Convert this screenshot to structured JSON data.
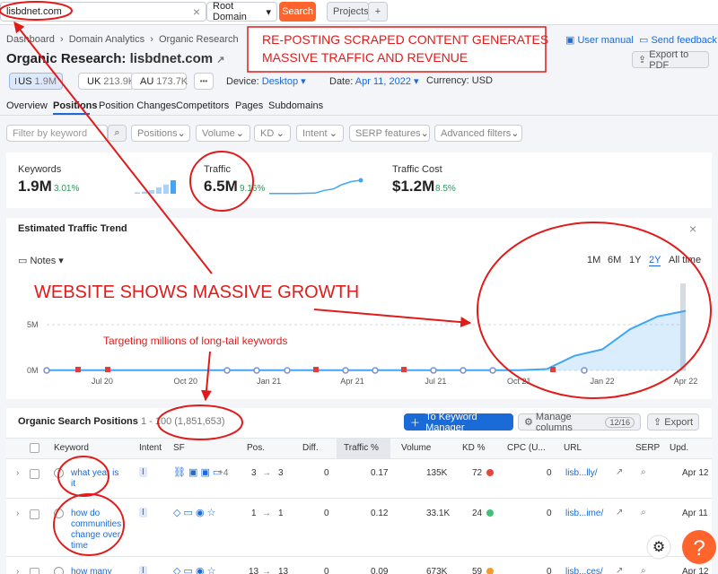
{
  "topbar": {
    "domain": "lisbdnet.com",
    "clear": "×",
    "scope": "Root Domain",
    "search": "Search",
    "projects": "Projects",
    "add": "+"
  },
  "breadcrumb": [
    "Dashboard",
    "Domain Analytics",
    "Organic Research"
  ],
  "header": {
    "title": "Organic Research:",
    "domain": "lisbdnet.com",
    "user_manual": "User manual",
    "send_feedback": "Send feedback",
    "export_pdf": "Export to PDF"
  },
  "annotations": {
    "box": [
      "RE-POSTING SCRAPED CONTENT GENERATES",
      "MASSIVE TRAFFIC AND REVENUE"
    ],
    "growth": "WEBSITE SHOWS MASSIVE GROWTH",
    "longtail": "Targeting millions of long-tail keywords"
  },
  "databases": [
    {
      "code": "US",
      "count": "1.9M"
    },
    {
      "code": "UK",
      "count": "213.9K"
    },
    {
      "code": "AU",
      "count": "173.7K"
    }
  ],
  "more": "•••",
  "settings": {
    "device_label": "Device:",
    "device": "Desktop",
    "date_label": "Date:",
    "date": "Apr 11, 2022",
    "currency_label": "Currency:",
    "currency": "USD"
  },
  "tabs": [
    "Overview",
    "Positions",
    "Position Changes",
    "Competitors",
    "Pages",
    "Subdomains"
  ],
  "active_tab": 1,
  "filters": {
    "keyword_placeholder": "Filter by keyword",
    "dropdowns": [
      "Positions",
      "Volume",
      "KD",
      "Intent",
      "SERP features",
      "Advanced filters"
    ]
  },
  "metrics": [
    {
      "label": "Keywords",
      "value": "1.9M",
      "change": "3.01%",
      "spark": [
        0.2,
        0.3,
        0.5,
        0.9,
        1.3,
        1.9
      ]
    },
    {
      "label": "Traffic",
      "value": "6.5M",
      "change": "9.16%",
      "spark": [
        0.1,
        0.1,
        0.1,
        0.1,
        0.2,
        0.3,
        1.6,
        2.3,
        4.5,
        5.9,
        6.5
      ]
    },
    {
      "label": "Traffic Cost",
      "value": "$1.2M",
      "change": "8.5%"
    }
  ],
  "trend": {
    "title": "Estimated Traffic Trend",
    "close": "×",
    "notes": "Notes",
    "ranges": [
      "1M",
      "6M",
      "1Y",
      "2Y",
      "All time"
    ],
    "active_range": 3,
    "categories": [
      null,
      null,
      "Jul 20",
      null,
      null,
      "Oct 20",
      null,
      null,
      "Jan 21",
      null,
      null,
      "Apr 21",
      null,
      null,
      "Jul 21",
      null,
      null,
      "Oct 21",
      null,
      null,
      "Jan 22",
      null,
      null,
      "Apr 22"
    ],
    "values": [
      20000,
      20000,
      20000,
      20000,
      20000,
      20000,
      20000,
      20000,
      20000,
      20000,
      20000,
      20000,
      20000,
      20000,
      20000,
      20000,
      20000,
      30000,
      150000,
      1600000,
      2300000,
      4500000,
      5900000,
      6500000
    ],
    "ylim": [
      0,
      9500000
    ],
    "yticks": [
      {
        "value": 0,
        "label": "0M"
      },
      {
        "value": 5000000,
        "label": "5M"
      }
    ],
    "color": "#42a5f5",
    "grid": true
  },
  "positions": {
    "title": "Organic Search Positions",
    "range": "1 - 100",
    "total": "(1,851,653)",
    "keyword_manager": "To Keyword Manager",
    "manage_columns": "Manage columns",
    "columns_count": "12/16",
    "export": "Export",
    "columns": [
      "Keyword",
      "Intent",
      "SF",
      "Pos.",
      "Diff.",
      "Traffic %",
      "Volume",
      "KD %",
      "CPC (U...",
      "URL",
      "SERP",
      "Upd."
    ],
    "rows": [
      {
        "keyword": "what year is it",
        "intent": "I",
        "sf_more": "+4",
        "pos_from": 3,
        "pos_to": 3,
        "diff": 0,
        "traffic": 0.17,
        "volume": "135K",
        "kd": 72,
        "kd_color": "#e8453c",
        "cpc": 0,
        "url": "lisb...lly/",
        "updated": "Apr 12"
      },
      {
        "keyword": "how do communities change over time",
        "intent": "I",
        "pos_from": 1,
        "pos_to": 1,
        "diff": 0,
        "traffic": 0.12,
        "volume": "33.1K",
        "kd": 24,
        "kd_color": "#3ec27a",
        "cpc": 0,
        "url": "lisb...ime/",
        "updated": "Apr 11"
      },
      {
        "keyword": "how many",
        "intent": "I",
        "pos_from": 13,
        "pos_to": 13,
        "diff": 0,
        "traffic": 0.09,
        "volume": "673K",
        "kd": 59,
        "kd_color": "#f39c2d",
        "cpc": 0,
        "url": "lisb...ces/",
        "updated": "Apr 12"
      }
    ]
  },
  "help": "?"
}
